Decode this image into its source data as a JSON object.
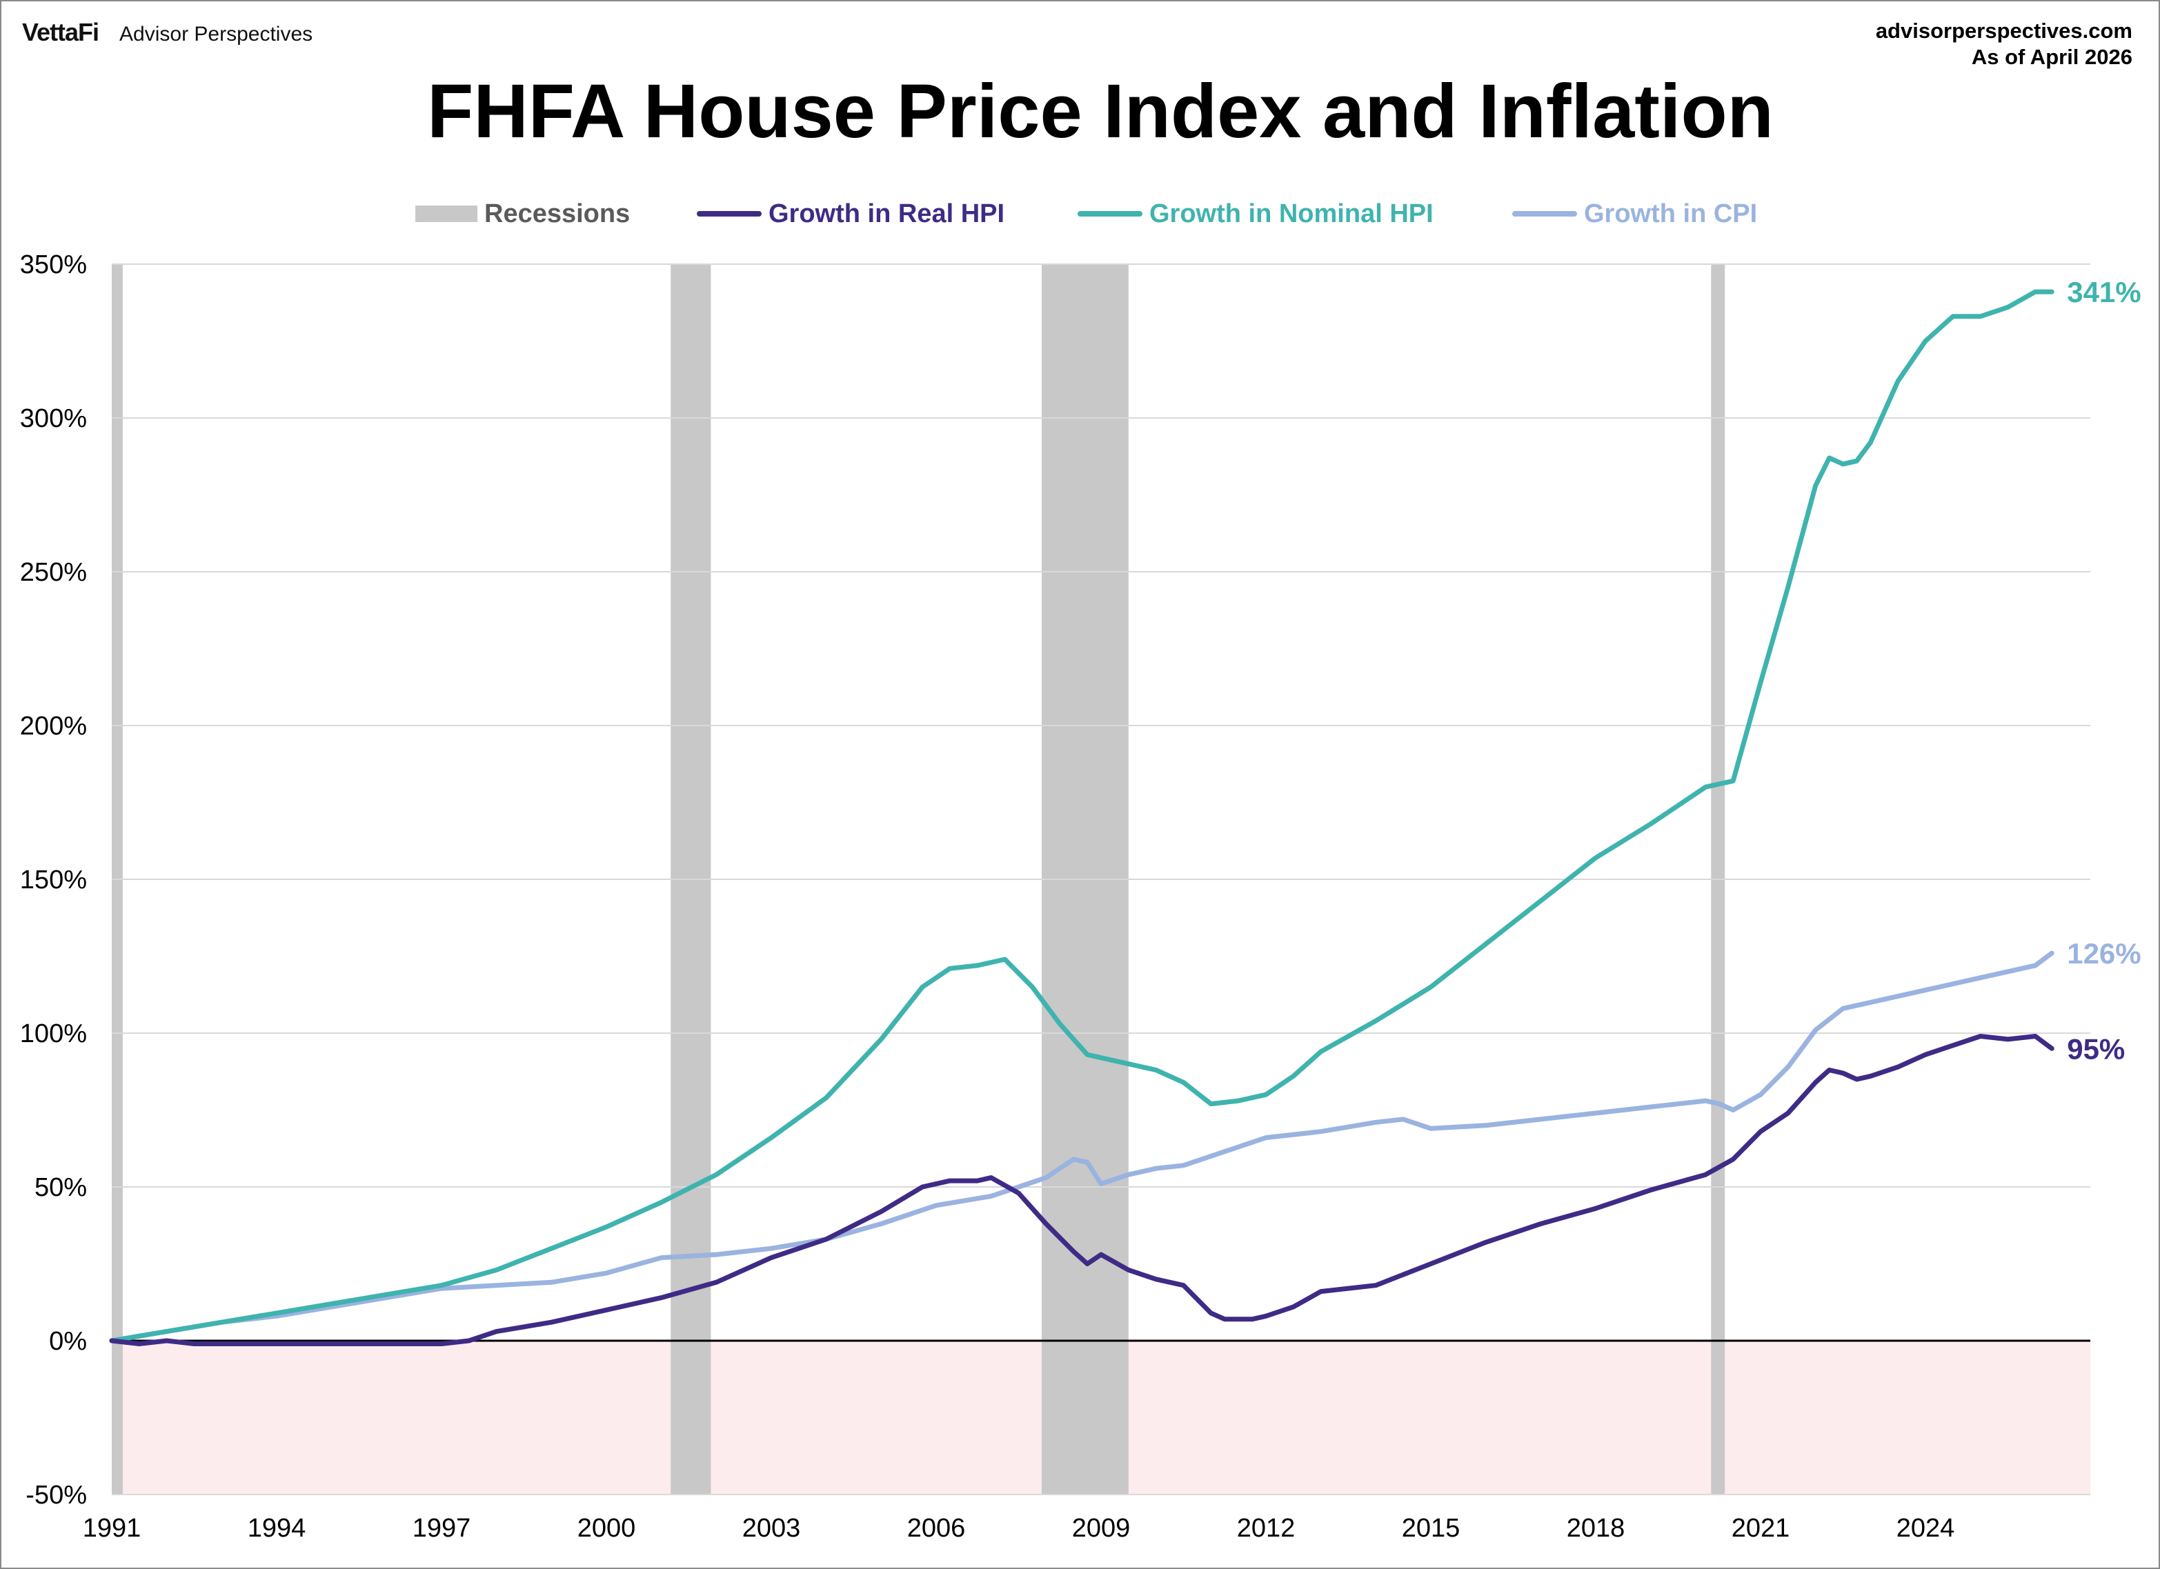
{
  "brand": {
    "logo": "VettaFi",
    "name": "Advisor Perspectives"
  },
  "source": {
    "site": "advisorperspectives.com",
    "date": "As of April 2026"
  },
  "chart_data": {
    "type": "line",
    "title": "FHFA House Price Index and Inflation",
    "xlabel": "",
    "ylabel": "",
    "xlim": [
      1991.0,
      2027.0
    ],
    "ylim": [
      -50,
      350
    ],
    "x_ticks": [
      1991,
      1994,
      1997,
      2000,
      2003,
      2006,
      2009,
      2012,
      2015,
      2018,
      2021,
      2024
    ],
    "y_ticks": [
      -50,
      0,
      50,
      100,
      150,
      200,
      250,
      300,
      350
    ],
    "y_tick_labels": [
      "-50%",
      "0%",
      "50%",
      "100%",
      "150%",
      "200%",
      "250%",
      "300%",
      "350%"
    ],
    "grid": "horizontal",
    "legend_position": "top",
    "negative_region_color": "#fdeced",
    "recessions": {
      "name": "Recessions",
      "color": "#c8c8c8",
      "periods": [
        [
          1991.0,
          1991.2
        ],
        [
          2001.17,
          2001.9
        ],
        [
          2007.92,
          2009.5
        ],
        [
          2020.1,
          2020.35
        ]
      ]
    },
    "series": [
      {
        "name": "Growth in Real HPI",
        "color": "#3f2b86",
        "end_label": "95%",
        "x": [
          1991,
          1991.5,
          1992,
          1992.5,
          1993,
          1994,
          1995,
          1996,
          1997,
          1997.5,
          1998,
          1999,
          2000,
          2001,
          2002,
          2003,
          2004,
          2005,
          2005.75,
          2006.25,
          2006.75,
          2007,
          2007.5,
          2008,
          2008.5,
          2008.75,
          2009,
          2009.5,
          2010,
          2010.5,
          2011,
          2011.25,
          2011.75,
          2012,
          2012.5,
          2013,
          2014,
          2015,
          2016,
          2017,
          2018,
          2019,
          2020,
          2020.5,
          2021,
          2021.5,
          2022,
          2022.25,
          2022.5,
          2022.75,
          2023,
          2023.5,
          2024,
          2024.5,
          2025,
          2025.5,
          2026,
          2026.3
        ],
        "values": [
          0,
          -1,
          0,
          -1,
          -1,
          -1,
          -1,
          -1,
          -1,
          0,
          3,
          6,
          10,
          14,
          19,
          27,
          33,
          42,
          50,
          52,
          52,
          53,
          48,
          38,
          29,
          25,
          28,
          23,
          20,
          18,
          9,
          7,
          7,
          8,
          11,
          16,
          18,
          25,
          32,
          38,
          43,
          49,
          54,
          59,
          68,
          74,
          84,
          88,
          87,
          85,
          86,
          89,
          93,
          96,
          99,
          98,
          99,
          95
        ]
      },
      {
        "name": "Growth in Nominal HPI",
        "color": "#3fb3ae",
        "end_label": "341%",
        "x": [
          1991,
          1992,
          1993,
          1994,
          1995,
          1996,
          1997,
          1998,
          1999,
          2000,
          2001,
          2002,
          2003,
          2004,
          2005,
          2005.75,
          2006.25,
          2006.75,
          2007.25,
          2007.75,
          2008.25,
          2008.75,
          2009,
          2009.5,
          2010,
          2010.5,
          2011,
          2011.5,
          2012,
          2012.5,
          2013,
          2014,
          2015,
          2016,
          2017,
          2018,
          2019,
          2020,
          2020.5,
          2020.75,
          2021,
          2021.5,
          2022,
          2022.25,
          2022.5,
          2022.75,
          2023,
          2023.5,
          2024,
          2024.5,
          2025,
          2025.5,
          2026,
          2026.3
        ],
        "values": [
          0,
          3,
          6,
          9,
          12,
          15,
          18,
          23,
          30,
          37,
          45,
          54,
          66,
          79,
          98,
          115,
          121,
          122,
          124,
          115,
          103,
          93,
          92,
          90,
          88,
          84,
          77,
          78,
          80,
          86,
          94,
          104,
          115,
          129,
          143,
          157,
          168,
          180,
          182,
          198,
          214,
          245,
          278,
          287,
          285,
          286,
          292,
          312,
          325,
          333,
          333,
          336,
          341,
          341
        ]
      },
      {
        "name": "Growth in CPI",
        "color": "#9ab3e0",
        "end_label": "126%",
        "x": [
          1991,
          1992,
          1993,
          1994,
          1995,
          1996,
          1997,
          1998,
          1999,
          2000,
          2001,
          2002,
          2003,
          2004,
          2005,
          2006,
          2007,
          2007.5,
          2008,
          2008.5,
          2008.75,
          2009,
          2009.5,
          2010,
          2010.5,
          2011,
          2012,
          2013,
          2014,
          2014.5,
          2015,
          2016,
          2017,
          2018,
          2019,
          2020,
          2020.25,
          2020.5,
          2021,
          2021.5,
          2022,
          2022.5,
          2023,
          2024,
          2025,
          2026,
          2026.3
        ],
        "values": [
          0,
          3,
          6,
          8,
          11,
          14,
          17,
          18,
          19,
          22,
          27,
          28,
          30,
          33,
          38,
          44,
          47,
          50,
          53,
          59,
          58,
          51,
          54,
          56,
          57,
          60,
          66,
          68,
          71,
          72,
          69,
          70,
          72,
          74,
          76,
          78,
          77,
          75,
          80,
          89,
          101,
          108,
          110,
          114,
          118,
          122,
          126
        ]
      }
    ]
  }
}
